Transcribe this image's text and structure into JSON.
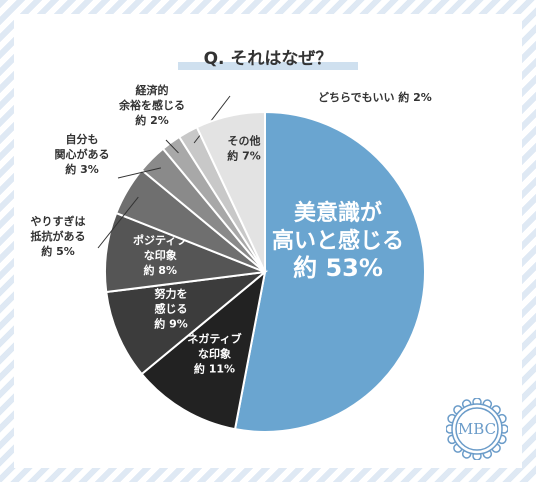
{
  "title": "Q. それはなぜ？",
  "logo": {
    "text": "MBC",
    "color": "#6b9cc9"
  },
  "chart_data": {
    "type": "pie",
    "title": "Q. それはなぜ？",
    "start_angle_deg": 0,
    "direction": "clockwise",
    "slices": [
      {
        "lines": [
          "美意識が",
          "高いと感じる"
        ],
        "value_label": "約 53%",
        "value": 53,
        "color": "#6aa5d0",
        "text_color": "#ffffff",
        "label_pos": "inside",
        "big": true
      },
      {
        "lines": [
          "ネガティブ",
          "な印象"
        ],
        "value_label": "約 11%",
        "value": 11,
        "color": "#222222",
        "text_color": "#ffffff",
        "label_pos": "inside"
      },
      {
        "lines": [
          "努力を",
          "感じる"
        ],
        "value_label": "約 9%",
        "value": 9,
        "color": "#3c3c3c",
        "text_color": "#ffffff",
        "label_pos": "inside"
      },
      {
        "lines": [
          "ポジティブ",
          "な印象"
        ],
        "value_label": "約 8%",
        "value": 8,
        "color": "#555555",
        "text_color": "#ffffff",
        "label_pos": "inside"
      },
      {
        "lines": [
          "やりすぎは",
          "抵抗がある"
        ],
        "value_label": "約 5%",
        "value": 5,
        "color": "#6f6f6f",
        "text_color": "#333333",
        "label_pos": "outside"
      },
      {
        "lines": [
          "自分も",
          "関心がある"
        ],
        "value_label": "約 3%",
        "value": 3,
        "color": "#8a8a8a",
        "text_color": "#333333",
        "label_pos": "outside"
      },
      {
        "lines": [
          "経済的",
          "余裕を感じる"
        ],
        "value_label": "約 2%",
        "value": 2,
        "color": "#a8a8a8",
        "text_color": "#333333",
        "label_pos": "outside"
      },
      {
        "lines": [
          "どちらでもいい"
        ],
        "value_label": "約 2%",
        "value": 2,
        "color": "#c8c8c8",
        "text_color": "#333333",
        "label_pos": "outside"
      },
      {
        "lines": [
          "その他"
        ],
        "value_label": "約 7%",
        "value": 7,
        "color": "#e3e3e3",
        "text_color": "#333333",
        "label_pos": "inside"
      }
    ]
  }
}
